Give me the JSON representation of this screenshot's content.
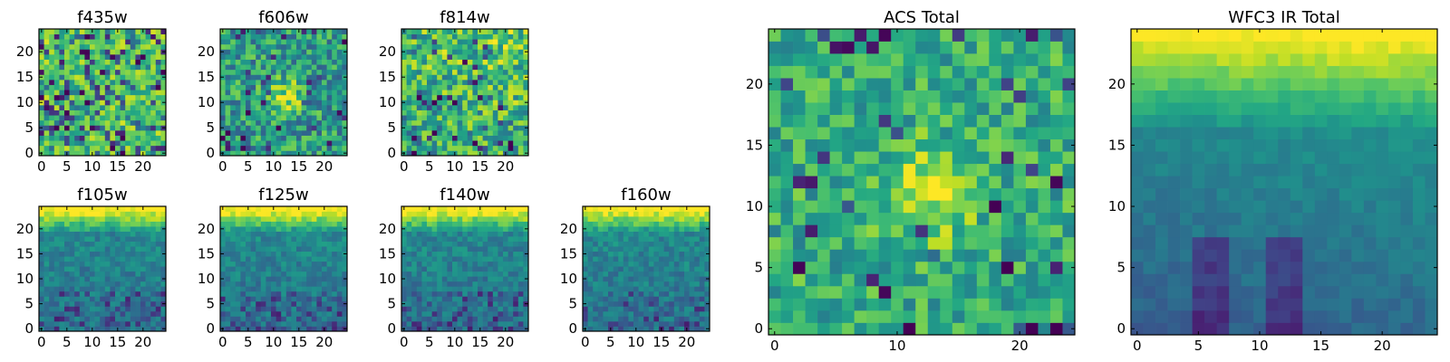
{
  "chart_data": [
    {
      "type": "heatmap",
      "title": "f435w",
      "colormap": "viridis",
      "grid_size": 25,
      "vmin": 0,
      "vmax": 1,
      "xticks": [
        0,
        5,
        10,
        15,
        20
      ],
      "yticks": [
        0,
        5,
        10,
        15,
        20
      ],
      "pattern": "uniform_noise",
      "seed": 11
    },
    {
      "type": "heatmap",
      "title": "f606w",
      "colormap": "viridis",
      "grid_size": 25,
      "vmin": 0,
      "vmax": 1,
      "xticks": [
        0,
        5,
        10,
        15,
        20
      ],
      "yticks": [
        0,
        5,
        10,
        15,
        20
      ],
      "pattern": "noise_center_bright",
      "seed": 23
    },
    {
      "type": "heatmap",
      "title": "f814w",
      "colormap": "viridis",
      "grid_size": 25,
      "vmin": 0,
      "vmax": 1,
      "xticks": [
        0,
        5,
        10,
        15,
        20
      ],
      "yticks": [
        0,
        5,
        10,
        15,
        20
      ],
      "pattern": "noise_top_right_bright",
      "seed": 37
    },
    {
      "type": "heatmap",
      "title": "f105w",
      "colormap": "viridis",
      "grid_size": 25,
      "vmin": 0,
      "vmax": 1,
      "xticks": [
        0,
        5,
        10,
        15,
        20
      ],
      "yticks": [
        0,
        5,
        10,
        15,
        20
      ],
      "pattern": "ir_top_gradient",
      "seed": 41
    },
    {
      "type": "heatmap",
      "title": "f125w",
      "colormap": "viridis",
      "grid_size": 25,
      "vmin": 0,
      "vmax": 1,
      "xticks": [
        0,
        5,
        10,
        15,
        20
      ],
      "yticks": [
        0,
        5,
        10,
        15,
        20
      ],
      "pattern": "ir_top_gradient",
      "seed": 53
    },
    {
      "type": "heatmap",
      "title": "f140w",
      "colormap": "viridis",
      "grid_size": 25,
      "vmin": 0,
      "vmax": 1,
      "xticks": [
        0,
        5,
        10,
        15,
        20
      ],
      "yticks": [
        0,
        5,
        10,
        15,
        20
      ],
      "pattern": "ir_top_gradient",
      "seed": 67
    },
    {
      "type": "heatmap",
      "title": "f160w",
      "colormap": "viridis",
      "grid_size": 25,
      "vmin": 0,
      "vmax": 1,
      "xticks": [
        0,
        5,
        10,
        15,
        20
      ],
      "yticks": [
        0,
        5,
        10,
        15,
        20
      ],
      "pattern": "ir_top_gradient",
      "seed": 71
    },
    {
      "type": "heatmap",
      "title": "ACS Total",
      "colormap": "viridis",
      "grid_size": 25,
      "vmin": 0,
      "vmax": 1,
      "xticks": [
        0,
        10,
        20
      ],
      "yticks": [
        0,
        5,
        10,
        15,
        20
      ],
      "pattern": "acs_total",
      "seed": 83
    },
    {
      "type": "heatmap",
      "title": "WFC3 IR Total",
      "colormap": "viridis",
      "grid_size": 25,
      "vmin": 0,
      "vmax": 1,
      "xticks": [
        0,
        5,
        10,
        15,
        20
      ],
      "yticks": [
        0,
        5,
        10,
        15,
        20
      ],
      "pattern": "ir_total",
      "seed": 97
    }
  ]
}
